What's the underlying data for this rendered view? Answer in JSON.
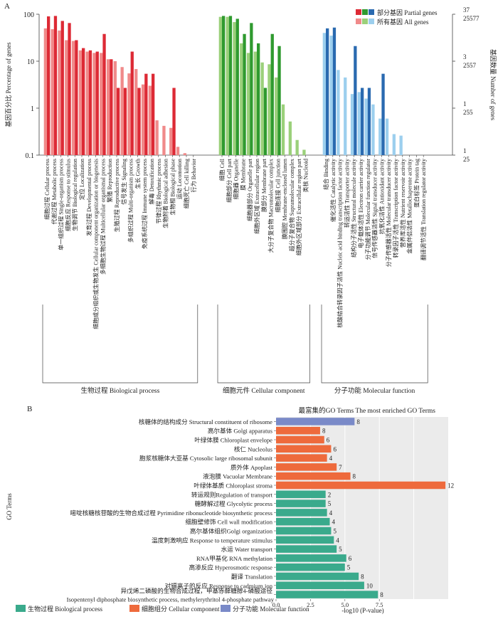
{
  "figure": {
    "panel_a_label": "A",
    "panel_b_label": "B"
  },
  "chart_data": [
    {
      "type": "bar",
      "panel": "A",
      "y_left_label": "基因百分比 Percentage of genes",
      "y_right_label": "基因数量 Number of genes",
      "y_scale": "log",
      "ylim": [
        0.1,
        100
      ],
      "y_left_ticks": [
        "100",
        "10",
        "1",
        "0.1"
      ],
      "y_right_ticks": [
        {
          "partial": "37",
          "all": "25577"
        },
        {
          "partial": "3",
          "all": "2557"
        },
        {
          "partial": "1",
          "all": "255"
        },
        {
          "partial": "1",
          "all": "25"
        }
      ],
      "legend": {
        "partial_label": "部分基因 Partial genes",
        "all_label": "所有基因 All genes",
        "partial_colors": [
          "#dd2a35",
          "#2f9a2f",
          "#2a6ab0"
        ],
        "all_colors": [
          "#f08a8a",
          "#9bd07a",
          "#9ccfee"
        ]
      },
      "groups": [
        {
          "name": "生物过程 Biological process",
          "color_partial": "#dd2a35",
          "color_all": "#f08a8a",
          "categories": [
            "细胞过程 Cellular process",
            "代谢过程 Metabolic process",
            "单一组织过程 Single-organism process",
            "细胞反应 Response to stimulus",
            "生物调节 Biological regulation",
            "定位 Localization",
            "发育过程 Developmental process",
            "细胞成分组织或生物发生 Cellular component organization or biogenesis",
            "多细胞生物过程 Multicellular organismal process",
            "繁殖 Reproduction",
            "生殖过程 Reproductive process",
            "信号发生 Signaling",
            "多组织过程 Multi-organism process",
            "生长 Growth",
            "免疫系统过程 Immune system process",
            "解毒 Detoxification",
            "节律过程 Rhythmic process",
            "生物附着 Biological adhesion",
            "生物相 Biological phase",
            "运动 Locomotion",
            "细胞死亡 Cell killing",
            "行为 Behavior"
          ],
          "partial": [
            90,
            92,
            72,
            65,
            28,
            19,
            17,
            16,
            38,
            11,
            2.7,
            2.7,
            16,
            2.7,
            5.4,
            5.4,
            0,
            0,
            2.7,
            0,
            0,
            0
          ],
          "all": [
            50,
            48,
            45,
            28,
            27,
            17,
            16,
            15,
            15,
            11,
            10,
            7.5,
            5.5,
            6.8,
            3.2,
            3.0,
            0.55,
            0.42,
            0.38,
            0.15,
            0.11,
            0
          ]
        },
        {
          "name": "细胞元件 Cellular component",
          "color_partial": "#2f9a2f",
          "color_all": "#9bd07a",
          "categories": [
            "细胞 Cell",
            "细胞部分 Cell part",
            "细胞器 Organelle",
            "膜 Membrane",
            "细胞器部分 Organelle part",
            "细胞外区域 Extracellular region",
            "膜部分 Membrane part",
            "大分子复合物 Macromolecular complex",
            "细胞连接 Cell junction",
            "膜围腔 Membrane-enclosed lumen",
            "超分子复合物 Supramolecular complex",
            "细胞外区域部分 Extracellular region part",
            "类核 Nucleoid"
          ],
          "partial": [
            92,
            92,
            80,
            38,
            65,
            24,
            2.7,
            38,
            21,
            0,
            0,
            0,
            0
          ],
          "all": [
            88,
            88,
            68,
            24,
            15,
            16,
            9.4,
            8.6,
            4.5,
            1.2,
            0.52,
            0.21,
            0.13
          ]
        },
        {
          "name": "分子功能 Molecular function",
          "color_partial": "#2a6ab0",
          "color_all": "#9ccfee",
          "categories": [
            "结合 Binding",
            "催化活性 Catalytic activity",
            "核酸结合转录因子活性 Nucleic acid binding transcription factor activity",
            "转运活性 Transporter activity",
            "结构分子活性 Structural molecule activity",
            "电子载体活性 Electron carrier activity",
            "分子功能调节 Molecular function regulator",
            "信号传感器活性 Signal transducer activity",
            "抗氧化活性 Antioxidant activity",
            "分子传感器活性 Molecular transducer activity",
            "转录因子活性 Transcription factor activity",
            "营养库活性 Nutrient reservoir activity",
            "金属伴侣活性 Metallochaperone activity",
            "蛋白标签 Protein tag",
            "翻译调节活性 Translation regulator activity"
          ],
          "partial": [
            50,
            52,
            0,
            0,
            21,
            2.7,
            2.7,
            0,
            5.4,
            0,
            0,
            0,
            0,
            0,
            0
          ],
          "all": [
            40,
            35,
            6.5,
            4.5,
            2.0,
            2.2,
            1.6,
            1.2,
            0.6,
            0.6,
            0.28,
            0.26,
            0,
            0,
            0
          ]
        }
      ]
    },
    {
      "type": "bar",
      "orientation": "horizontal",
      "panel": "B",
      "title": "最富集的GO Terms  The most enriched GO Terms",
      "xlabel": "-log10 (P-value)",
      "ylabel": "GO Terms",
      "xlim": [
        0,
        12.5
      ],
      "x_ticks": [
        "0.0",
        "2.5",
        "5.0",
        "7.5"
      ],
      "legend": [
        {
          "name": "生物过程 Biological process",
          "color": "#3aaa8c"
        },
        {
          "name": "细胞组分 Cellular component",
          "color": "#ee6a3c"
        },
        {
          "name": "分子功能 Molecular function",
          "color": "#7a8ac8"
        }
      ],
      "bars": [
        {
          "label": "核糖体的结构成分 Structural constituent of ribosome",
          "value": 5.7,
          "count": "8",
          "class": "mf"
        },
        {
          "label": "高尔基体 Golgi apparatus",
          "value": 3.2,
          "count": "8",
          "class": "cc"
        },
        {
          "label": "叶绿体膜 Chloroplast envelope",
          "value": 3.5,
          "count": "6",
          "class": "cc"
        },
        {
          "label": "核仁 Nucleolus",
          "value": 4.0,
          "count": "6",
          "class": "cc"
        },
        {
          "label": "胞浆核糖体大亚基 Cytosolic large ribosomal subunit",
          "value": 3.7,
          "count": "4",
          "class": "cc"
        },
        {
          "label": "质外体 Apoplast",
          "value": 4.4,
          "count": "7",
          "class": "cc"
        },
        {
          "label": "液泡膜 Vacuolar Membrane",
          "value": 5.4,
          "count": "8",
          "class": "cc"
        },
        {
          "label": "叶绿体基质 Chloroplast stroma",
          "value": 12.3,
          "count": "12",
          "class": "cc"
        },
        {
          "label": "转运规则Regulation of transport",
          "value": 3.6,
          "count": "2",
          "class": "bp"
        },
        {
          "label": "糖酵解过程 Glycolytic process",
          "value": 3.6,
          "count": "5",
          "class": "bp"
        },
        {
          "label": "嘧啶核糖核苷酸的生物合成过程 Pyrimidine ribonucleotide biosynthetic process",
          "value": 3.7,
          "count": "4",
          "class": "bp"
        },
        {
          "label": "细胞壁修饰 Cell wall modification",
          "value": 3.9,
          "count": "4",
          "class": "bp"
        },
        {
          "label": "高尔基体组织Golgi organization",
          "value": 4.0,
          "count": "5",
          "class": "bp"
        },
        {
          "label": "温度刺激响应 Response to temperature stimulus",
          "value": 4.2,
          "count": "4",
          "class": "bp"
        },
        {
          "label": "水运 Water transport",
          "value": 4.4,
          "count": "5",
          "class": "bp"
        },
        {
          "label": "RNA甲基化 RNA methylation",
          "value": 5.1,
          "count": "6",
          "class": "bp"
        },
        {
          "label": "高渗反应 Hyperosmotic response",
          "value": 5.0,
          "count": "5",
          "class": "bp"
        },
        {
          "label": "翻译 Translation",
          "value": 6.0,
          "count": "8",
          "class": "bp"
        },
        {
          "label": "对镉离子的反应 Response to cadmium ion",
          "value": 6.4,
          "count": "10",
          "class": "bp"
        },
        {
          "label": "异戊烯二磷酸的生物合成过程，甲基赤藓糖醇4-磷酸途径 Isopentenyl diphosphate biosynthetic process, methylerythritol 4-phosphate pathway",
          "value": 7.4,
          "count": "8",
          "class": "bp"
        }
      ],
      "colors": {
        "bp": "#3aaa8c",
        "cc": "#ee6a3c",
        "mf": "#7a8ac8"
      }
    }
  ]
}
